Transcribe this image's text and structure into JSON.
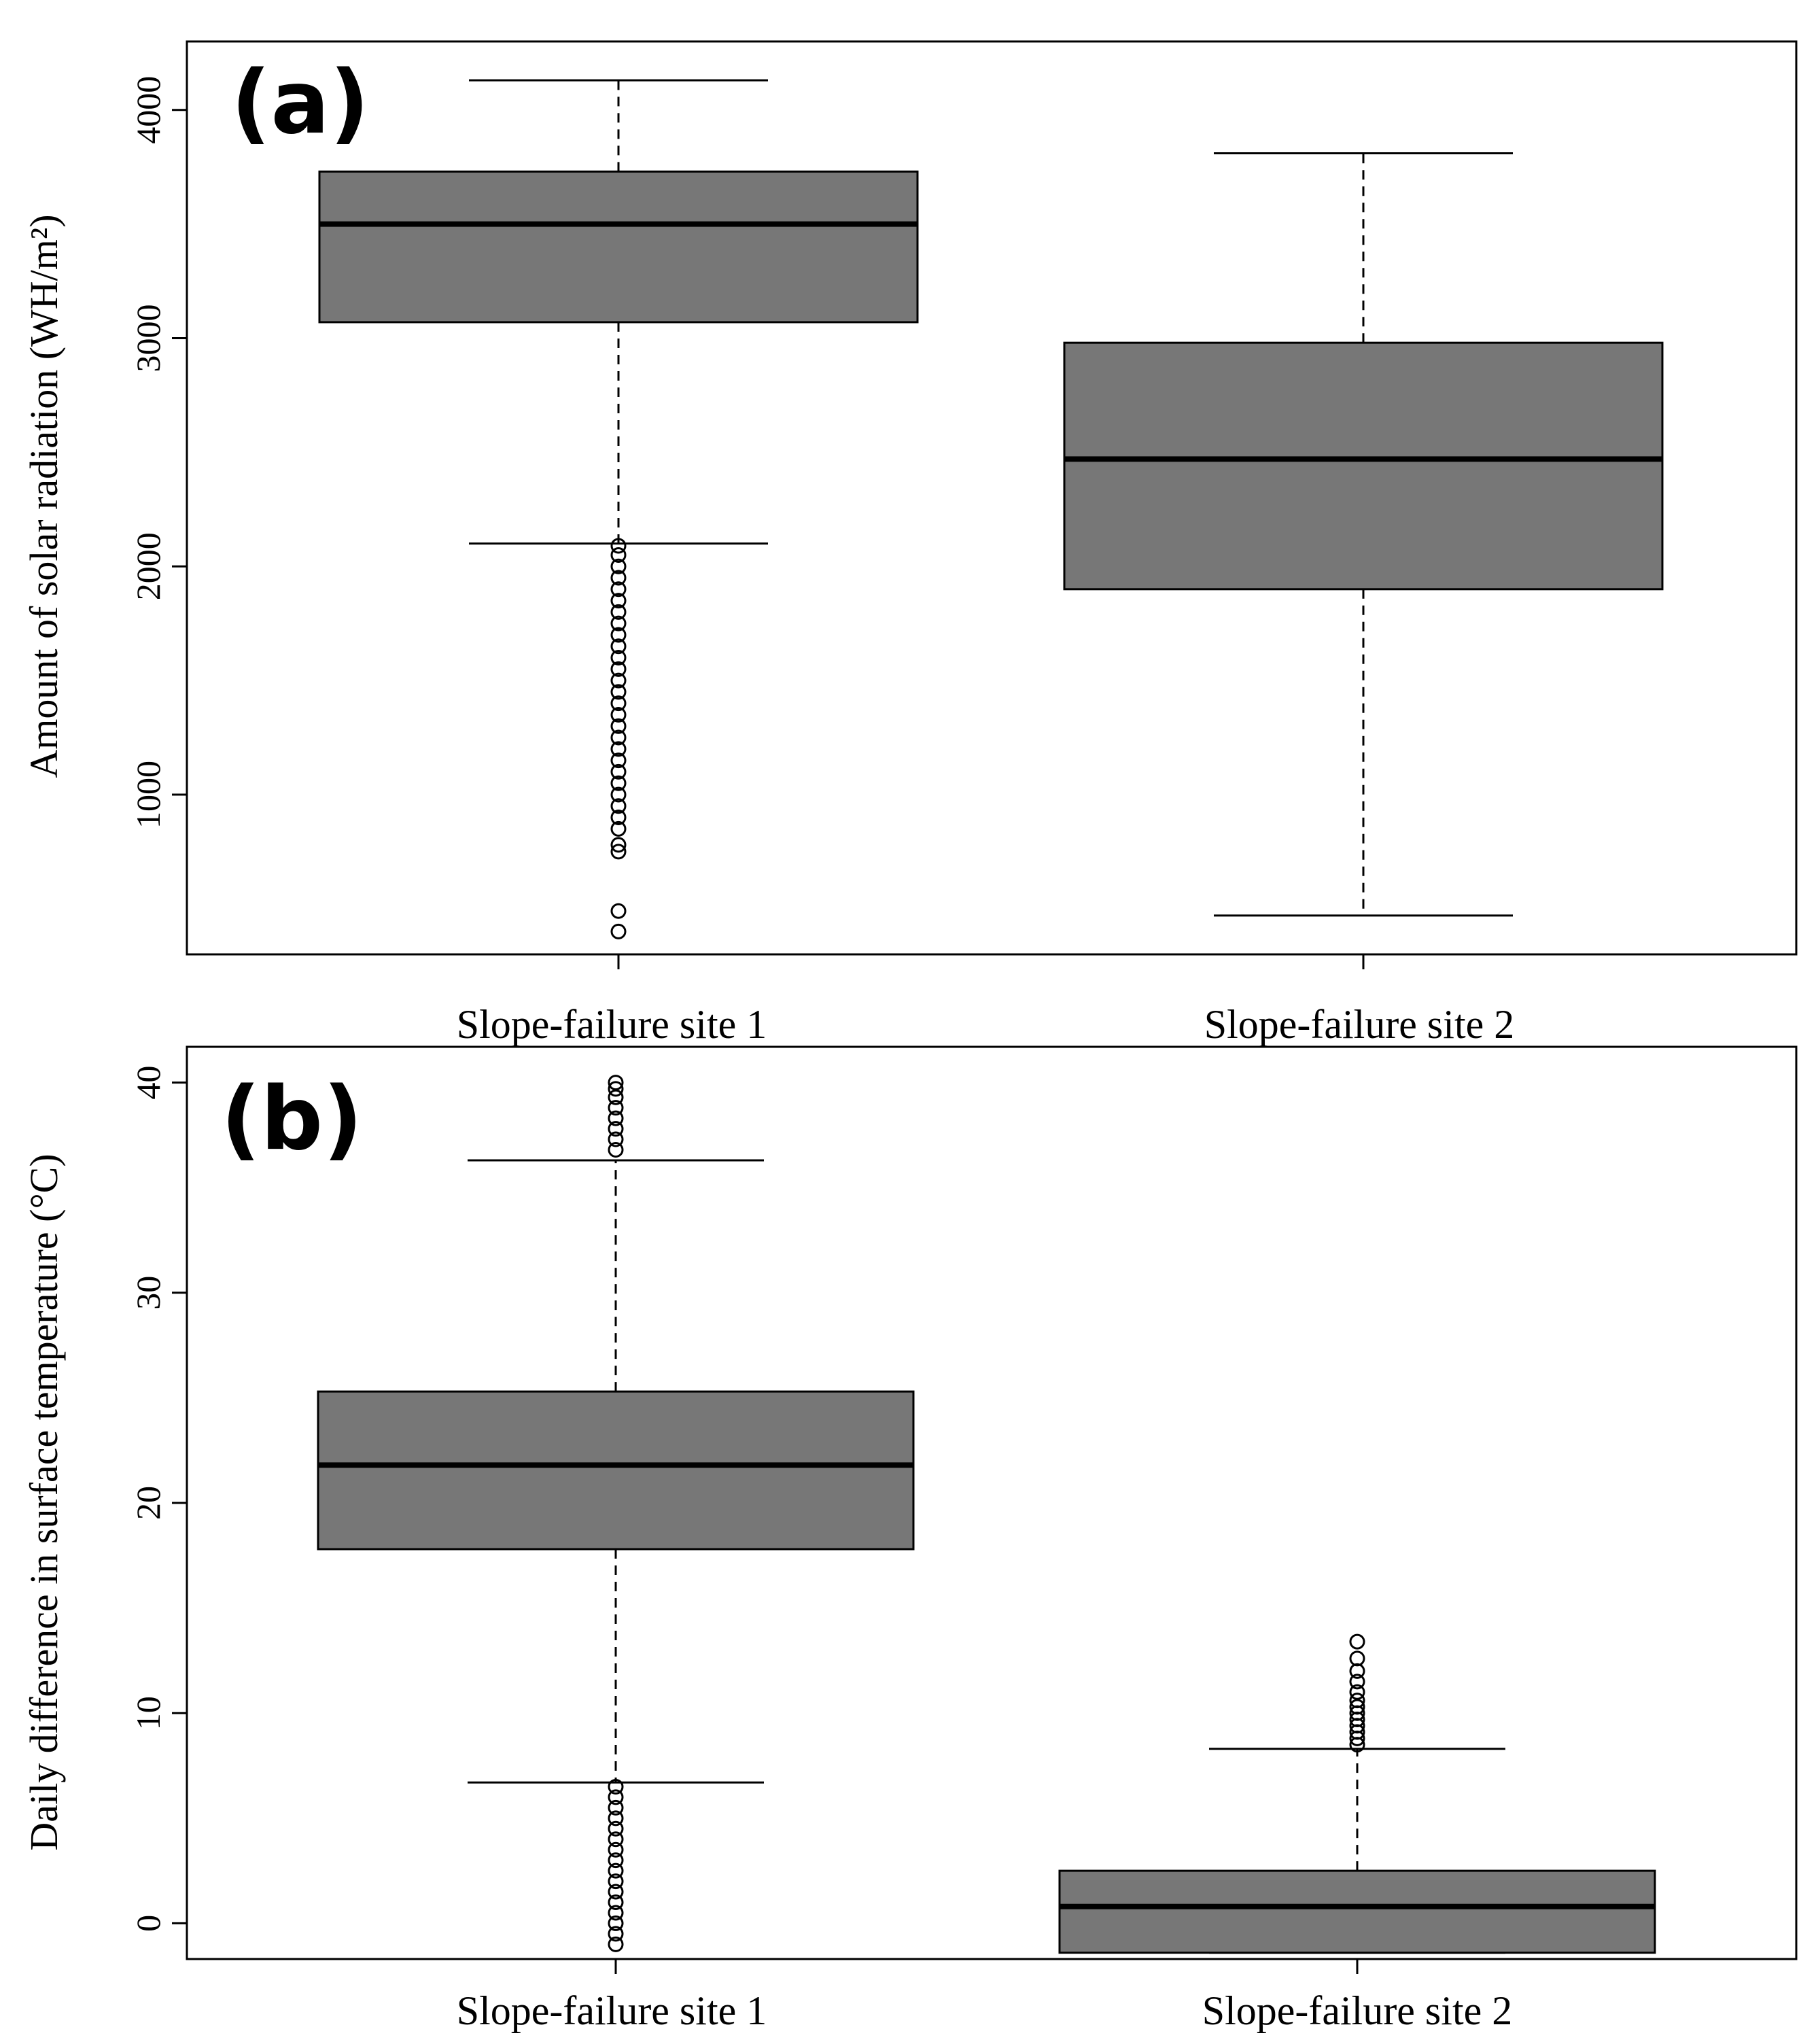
{
  "chart_data": [
    {
      "type": "boxplot",
      "panel_label": "(a)",
      "ylabel": "Amount of solar radiation (WH/m²)",
      "xlabel": "",
      "categories": [
        "Slope-failure site 1",
        "Slope-failure site 2"
      ],
      "ylim": [
        300,
        4300
      ],
      "yticks": [
        1000,
        2000,
        3000,
        4000
      ],
      "box_color": "#777777",
      "boxes": [
        {
          "category": "Slope-failure site 1",
          "whisker_low": 2100,
          "q1": 3070,
          "median": 3500,
          "q3": 3730,
          "whisker_high": 4130,
          "outliers": [
            400,
            490,
            750,
            780,
            850,
            900,
            950,
            1000,
            1050,
            1100,
            1150,
            1200,
            1250,
            1300,
            1350,
            1400,
            1450,
            1500,
            1550,
            1600,
            1650,
            1700,
            1750,
            1800,
            1850,
            1900,
            1950,
            2000,
            2050,
            2090
          ]
        },
        {
          "category": "Slope-failure site 2",
          "whisker_low": 470,
          "q1": 1900,
          "median": 2470,
          "q3": 2980,
          "whisker_high": 3810,
          "outliers": []
        }
      ]
    },
    {
      "type": "boxplot",
      "panel_label": "(b)",
      "ylabel": "Daily difference in surface temperature (°C)",
      "xlabel": "",
      "categories": [
        "Slope-failure site 1",
        "Slope-failure site 2"
      ],
      "ylim": [
        -1.7,
        41.7
      ],
      "yticks": [
        0,
        10,
        20,
        30,
        40
      ],
      "box_color": "#777777",
      "boxes": [
        {
          "category": "Slope-failure site 1",
          "whisker_low": 6.7,
          "q1": 17.8,
          "median": 21.8,
          "q3": 25.3,
          "whisker_high": 36.3,
          "outliers": [
            -1.0,
            -0.5,
            0,
            0.5,
            1.0,
            1.5,
            2.0,
            2.5,
            3.0,
            3.5,
            4.0,
            4.5,
            5.0,
            5.5,
            6.0,
            6.5,
            36.8,
            37.3,
            37.8,
            38.3,
            38.8,
            39.3,
            39.7,
            40.0
          ]
        },
        {
          "category": "Slope-failure site 2",
          "whisker_low": -1.4,
          "q1": -1.4,
          "median": 0.8,
          "q3": 2.5,
          "whisker_high": 8.3,
          "outliers": [
            8.5,
            8.8,
            9.1,
            9.4,
            9.7,
            10.0,
            10.3,
            10.6,
            11.0,
            11.5,
            12.0,
            12.6,
            13.4
          ]
        }
      ]
    }
  ]
}
